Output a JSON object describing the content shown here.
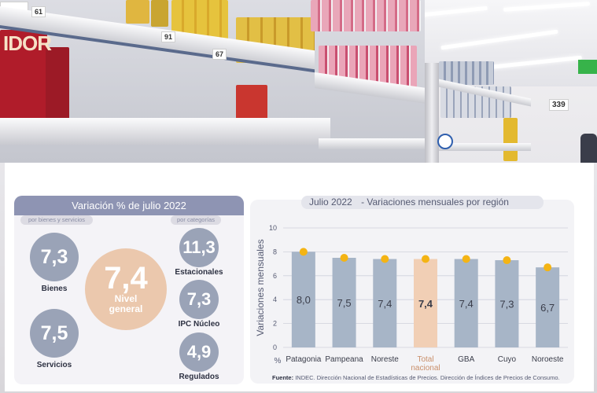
{
  "photo": {
    "price_tags": [
      "61",
      "91",
      "67",
      "339"
    ],
    "brand_fragment": "IDOR"
  },
  "left_panel": {
    "title": "Variación % de julio 2022",
    "pill_left": "por bienes y servicios",
    "pill_right": "por categorías",
    "items": {
      "bienes": {
        "value": "7,3",
        "label": "Bienes"
      },
      "servicios": {
        "value": "7,5",
        "label": "Servicios"
      },
      "nivel": {
        "value": "7,4",
        "label_line1": "Nivel",
        "label_line2": "general"
      },
      "estacionales": {
        "value": "11,3",
        "label": "Estacionales"
      },
      "nucleo": {
        "value": "7,3",
        "label": "IPC Núcleo"
      },
      "regulados": {
        "value": "4,9",
        "label": "Regulados"
      }
    }
  },
  "right_panel": {
    "title_date": "Julio 2022",
    "title_text": "- Variaciones mensuales por región",
    "source_label": "Fuente:",
    "source_text": "INDEC. Dirección Nacional de Estadísticas de Precios. Dirección de Índices de Precios de Consumo."
  },
  "colors": {
    "bar": "#a7b5c7",
    "bar_highlight": "#f1cfb5",
    "marker": "#f4b414",
    "header": "#8e94b3",
    "circle_gray": "#9aa3b7",
    "circle_peach": "#ebc8ad"
  },
  "chart_data": {
    "type": "bar",
    "title": "Julio 2022 - Variaciones mensuales por región",
    "ylabel": "Variaciones mensuales",
    "yunit": "%",
    "ylim": [
      0,
      10
    ],
    "yticks": [
      0,
      2,
      4,
      6,
      8,
      10
    ],
    "grid": true,
    "categories": [
      "Patagonia",
      "Pampeana",
      "Noreste",
      "Total nacional",
      "GBA",
      "Cuyo",
      "Noroeste"
    ],
    "category_lines": [
      [
        "Patagonia"
      ],
      [
        "Pampeana"
      ],
      [
        "Noreste"
      ],
      [
        "Total",
        "nacional"
      ],
      [
        "GBA"
      ],
      [
        "Cuyo"
      ],
      [
        "Noroeste"
      ]
    ],
    "values": [
      8.0,
      7.5,
      7.4,
      7.4,
      7.4,
      7.3,
      6.7
    ],
    "value_labels": [
      "8,0",
      "7,5",
      "7,4",
      "7,4",
      "7,4",
      "7,3",
      "6,7"
    ],
    "highlight_index": 3
  }
}
